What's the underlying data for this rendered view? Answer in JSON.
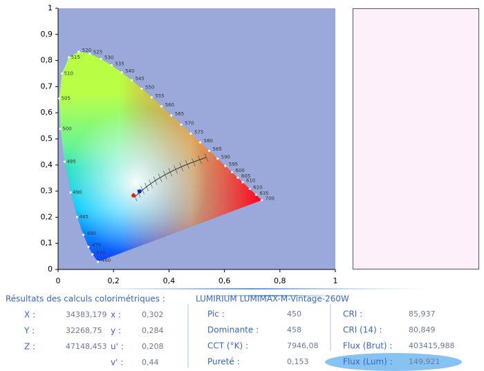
{
  "chart_data": {
    "type": "scatter",
    "xlim": [
      0,
      1
    ],
    "ylim": [
      0,
      1
    ],
    "xticks": [
      0,
      {
        "value": 0.2,
        "label": "0,2"
      },
      {
        "value": 0.4,
        "label": "0,4"
      },
      {
        "value": 0.6,
        "label": "0,6"
      },
      {
        "value": 0.8,
        "label": "0,8"
      },
      1
    ],
    "yticks": [
      0,
      {
        "value": 0.1,
        "label": "0,1"
      },
      {
        "value": 0.2,
        "label": "0,2"
      },
      {
        "value": 0.3,
        "label": "0,3"
      },
      {
        "value": 0.4,
        "label": "0,4"
      },
      {
        "value": 0.5,
        "label": "0,5"
      },
      {
        "value": 0.6,
        "label": "0,6"
      },
      {
        "value": 0.7,
        "label": "0,7"
      },
      {
        "value": 0.8,
        "label": "0,8"
      },
      {
        "value": 0.9,
        "label": "0,9"
      },
      1
    ],
    "background": "#9aa9d9",
    "locus": [
      {
        "label": "460",
        "x": 0.144,
        "y": 0.0297
      },
      {
        "label": "470",
        "x": 0.1241,
        "y": 0.0578
      },
      {
        "label": "475",
        "x": 0.1096,
        "y": 0.0868
      },
      {
        "label": "480",
        "x": 0.0913,
        "y": 0.1327
      },
      {
        "label": "485",
        "x": 0.0687,
        "y": 0.2007
      },
      {
        "label": "490",
        "x": 0.0454,
        "y": 0.295
      },
      {
        "label": "495",
        "x": 0.0235,
        "y": 0.4127
      },
      {
        "label": "500",
        "x": 0.0082,
        "y": 0.5384
      },
      {
        "label": "505",
        "x": 0.0039,
        "y": 0.6548
      },
      {
        "label": "510",
        "x": 0.0139,
        "y": 0.7502
      },
      {
        "label": "515",
        "x": 0.0389,
        "y": 0.812
      },
      {
        "label": "520",
        "x": 0.0743,
        "y": 0.8338
      },
      {
        "label": "525",
        "x": 0.1142,
        "y": 0.8262
      },
      {
        "label": "530",
        "x": 0.1547,
        "y": 0.8059
      },
      {
        "label": "535",
        "x": 0.1929,
        "y": 0.7816
      },
      {
        "label": "540",
        "x": 0.2296,
        "y": 0.7543
      },
      {
        "label": "545",
        "x": 0.2658,
        "y": 0.7243
      },
      {
        "label": "550",
        "x": 0.3016,
        "y": 0.6923
      },
      {
        "label": "555",
        "x": 0.3373,
        "y": 0.6589
      },
      {
        "label": "560",
        "x": 0.3731,
        "y": 0.6245
      },
      {
        "label": "565",
        "x": 0.4087,
        "y": 0.5896
      },
      {
        "label": "570",
        "x": 0.4441,
        "y": 0.5547
      },
      {
        "label": "575",
        "x": 0.4788,
        "y": 0.5202
      },
      {
        "label": "580",
        "x": 0.5125,
        "y": 0.4866
      },
      {
        "label": "585",
        "x": 0.5448,
        "y": 0.4544
      },
      {
        "label": "590",
        "x": 0.5752,
        "y": 0.4242
      },
      {
        "label": "595",
        "x": 0.6029,
        "y": 0.3965
      },
      {
        "label": "600",
        "x": 0.627,
        "y": 0.3725
      },
      {
        "label": "605",
        "x": 0.6482,
        "y": 0.3514
      },
      {
        "label": "610",
        "x": 0.6658,
        "y": 0.334
      },
      {
        "label": "620",
        "x": 0.6915,
        "y": 0.3083
      },
      {
        "label": "635",
        "x": 0.714,
        "y": 0.2859
      },
      {
        "label": "700",
        "x": 0.7347,
        "y": 0.2653
      }
    ],
    "points": [
      {
        "x": 0.272,
        "y": 0.283,
        "color": "#e02020"
      },
      {
        "x": 0.294,
        "y": 0.299,
        "color": "#1020d0"
      }
    ]
  },
  "results": {
    "heading": "Résultats des calculs colorimétriques :",
    "product": "LUMIRIUM LUMIMAX-M-Vintage-260W",
    "tristimulus": [
      {
        "label": "X :",
        "value": "34383,179"
      },
      {
        "label": "Y :",
        "value": "32268,75"
      },
      {
        "label": "Z :",
        "value": "47148,453"
      }
    ],
    "chromaticity": [
      {
        "label": "x :",
        "value": "0,302"
      },
      {
        "label": "y :",
        "value": "0,284"
      },
      {
        "label": "u' :",
        "value": "0,208"
      },
      {
        "label": "v' :",
        "value": "0,44"
      }
    ],
    "spectral": [
      {
        "label": "Pic :",
        "value": "450"
      },
      {
        "label": "Dominante :",
        "value": "458"
      },
      {
        "label": "CCT (°K) :",
        "value": "7946,08"
      },
      {
        "label": "Pureté :",
        "value": "0,153"
      }
    ],
    "quality": [
      {
        "label": "CRI :",
        "value": "85,937"
      },
      {
        "label": "CRI (14) :",
        "value": "80,849"
      },
      {
        "label": "Flux (Brut) :",
        "value": "403415,988"
      },
      {
        "label": "Flux (Lum) :",
        "value": "149,921"
      }
    ]
  }
}
